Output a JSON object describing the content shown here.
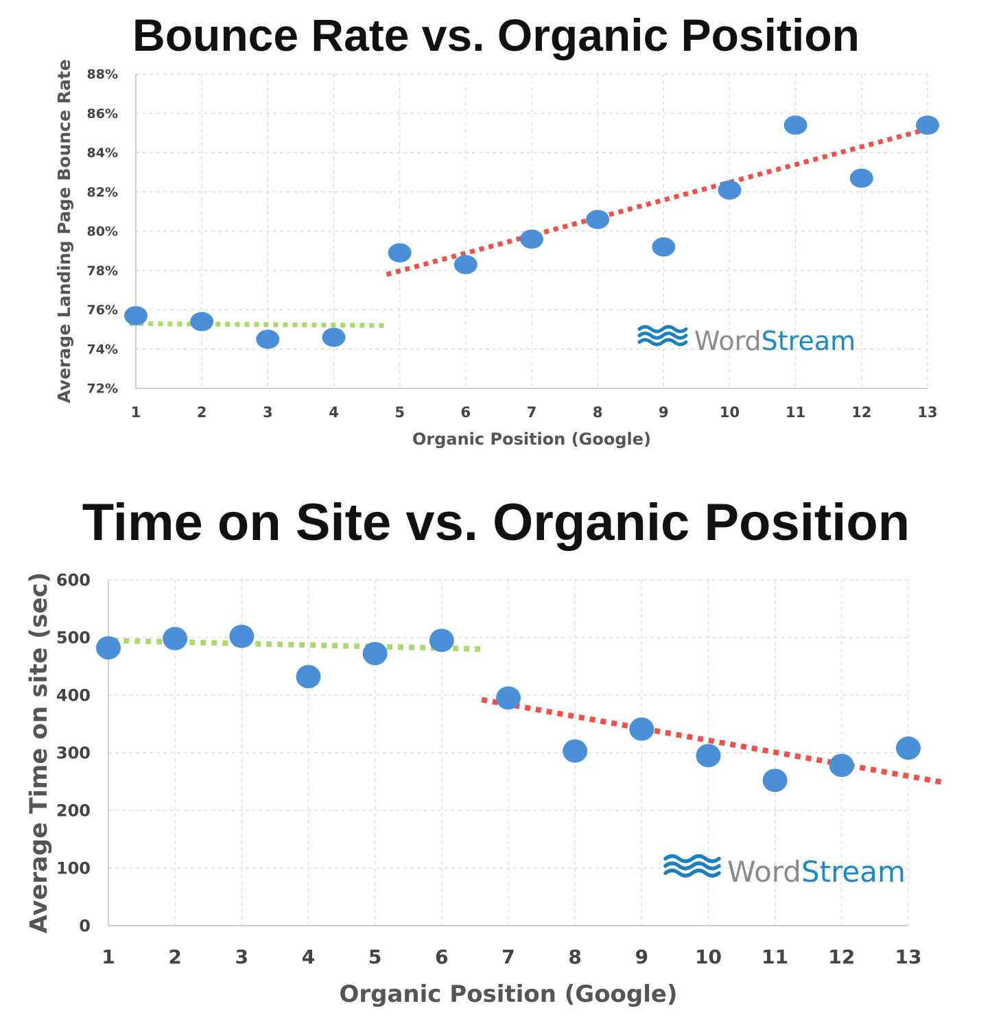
{
  "chart_data": [
    {
      "type": "scatter",
      "title": "Bounce Rate vs. Organic Position",
      "xlabel": "Organic Position (Google)",
      "ylabel": "Average Landing Page Bounce Rate",
      "x_ticks": [
        "1",
        "2",
        "3",
        "4",
        "5",
        "6",
        "7",
        "8",
        "9",
        "10",
        "11",
        "12",
        "13"
      ],
      "y_ticks": [
        "72%",
        "74%",
        "76%",
        "78%",
        "80%",
        "82%",
        "84%",
        "86%",
        "88%"
      ],
      "xlim": [
        1,
        13
      ],
      "ylim": [
        72,
        88
      ],
      "grid": true,
      "points": [
        {
          "x": 1,
          "y": 75.7
        },
        {
          "x": 2,
          "y": 75.4
        },
        {
          "x": 3,
          "y": 74.5
        },
        {
          "x": 4,
          "y": 74.6
        },
        {
          "x": 5,
          "y": 78.9
        },
        {
          "x": 6,
          "y": 78.3
        },
        {
          "x": 7,
          "y": 79.6
        },
        {
          "x": 8,
          "y": 80.6
        },
        {
          "x": 9,
          "y": 79.2
        },
        {
          "x": 10,
          "y": 82.1
        },
        {
          "x": 11,
          "y": 85.4
        },
        {
          "x": 12,
          "y": 82.7
        },
        {
          "x": 13,
          "y": 85.4
        }
      ],
      "trendlines": [
        {
          "color": "#a9d86e",
          "x": [
            0.9,
            4.8
          ],
          "y": [
            75.3,
            75.2
          ]
        },
        {
          "color": "#f0504a",
          "x": [
            4.8,
            13
          ],
          "y": [
            77.8,
            85.2
          ]
        }
      ],
      "point_color": "#4a90d9",
      "watermark": {
        "part1": "Word",
        "part2": "Stream"
      }
    },
    {
      "type": "scatter",
      "title": "Time on Site vs. Organic Position",
      "xlabel": "Organic Position (Google)",
      "ylabel": "Average Time on site (sec)",
      "x_ticks": [
        "1",
        "2",
        "3",
        "4",
        "5",
        "6",
        "7",
        "8",
        "9",
        "10",
        "11",
        "12",
        "13"
      ],
      "y_ticks": [
        "0",
        "100",
        "200",
        "300",
        "400",
        "500",
        "600"
      ],
      "xlim": [
        1,
        13
      ],
      "ylim": [
        0,
        600
      ],
      "grid": true,
      "points": [
        {
          "x": 1,
          "y": 482
        },
        {
          "x": 2,
          "y": 498
        },
        {
          "x": 3,
          "y": 502
        },
        {
          "x": 4,
          "y": 432
        },
        {
          "x": 5,
          "y": 472
        },
        {
          "x": 6,
          "y": 495
        },
        {
          "x": 7,
          "y": 395
        },
        {
          "x": 8,
          "y": 303
        },
        {
          "x": 9,
          "y": 341
        },
        {
          "x": 10,
          "y": 295
        },
        {
          "x": 11,
          "y": 252
        },
        {
          "x": 12,
          "y": 278
        },
        {
          "x": 13,
          "y": 308
        }
      ],
      "trendlines": [
        {
          "color": "#a9d86e",
          "x": [
            0.9,
            6.6
          ],
          "y": [
            495,
            480
          ]
        },
        {
          "color": "#f0504a",
          "x": [
            6.6,
            13.55
          ],
          "y": [
            392,
            248
          ]
        }
      ],
      "point_color": "#4a90d9",
      "watermark": {
        "part1": "Word",
        "part2": "Stream"
      }
    }
  ]
}
